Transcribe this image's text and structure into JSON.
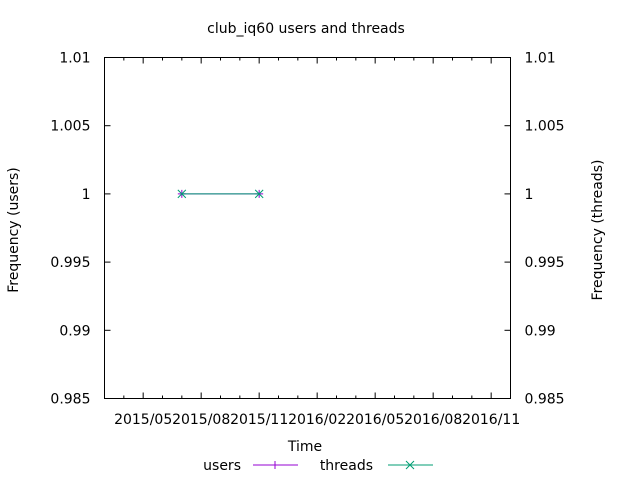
{
  "chart_data": {
    "type": "line",
    "title": "club_iq60 users and threads",
    "xlabel": "Time",
    "ylabel": "Frequency (users)",
    "y2label": "Frequency (threads)",
    "x_tick_labels": [
      "2015/05",
      "2015/08",
      "2015/11",
      "2016/02",
      "2016/05",
      "2016/08",
      "2016/11"
    ],
    "xlim": [
      "2015/03",
      "2016/12"
    ],
    "ylim": [
      0.985,
      1.01
    ],
    "y_ticks": [
      0.985,
      0.99,
      0.995,
      1,
      1.005,
      1.01
    ],
    "y_tick_labels": [
      "0.985",
      "0.99",
      "0.995",
      "1",
      "1.005",
      "1.01"
    ],
    "y2lim": [
      0.985,
      1.01
    ],
    "y2_ticks": [
      0.985,
      0.99,
      0.995,
      1,
      1.005,
      1.01
    ],
    "y2_tick_labels": [
      "0.985",
      "0.99",
      "0.995",
      "1",
      "1.005",
      "1.01"
    ],
    "legend_position": "bottom-center",
    "grid": false,
    "series": [
      {
        "name": "users",
        "color": "#9400d3",
        "marker": "plus",
        "x": [
          "2015/07",
          "2015/11"
        ],
        "y": [
          1,
          1
        ]
      },
      {
        "name": "threads",
        "color": "#009e73",
        "marker": "cross",
        "x": [
          "2015/07",
          "2015/11"
        ],
        "y": [
          1,
          1
        ]
      }
    ]
  }
}
